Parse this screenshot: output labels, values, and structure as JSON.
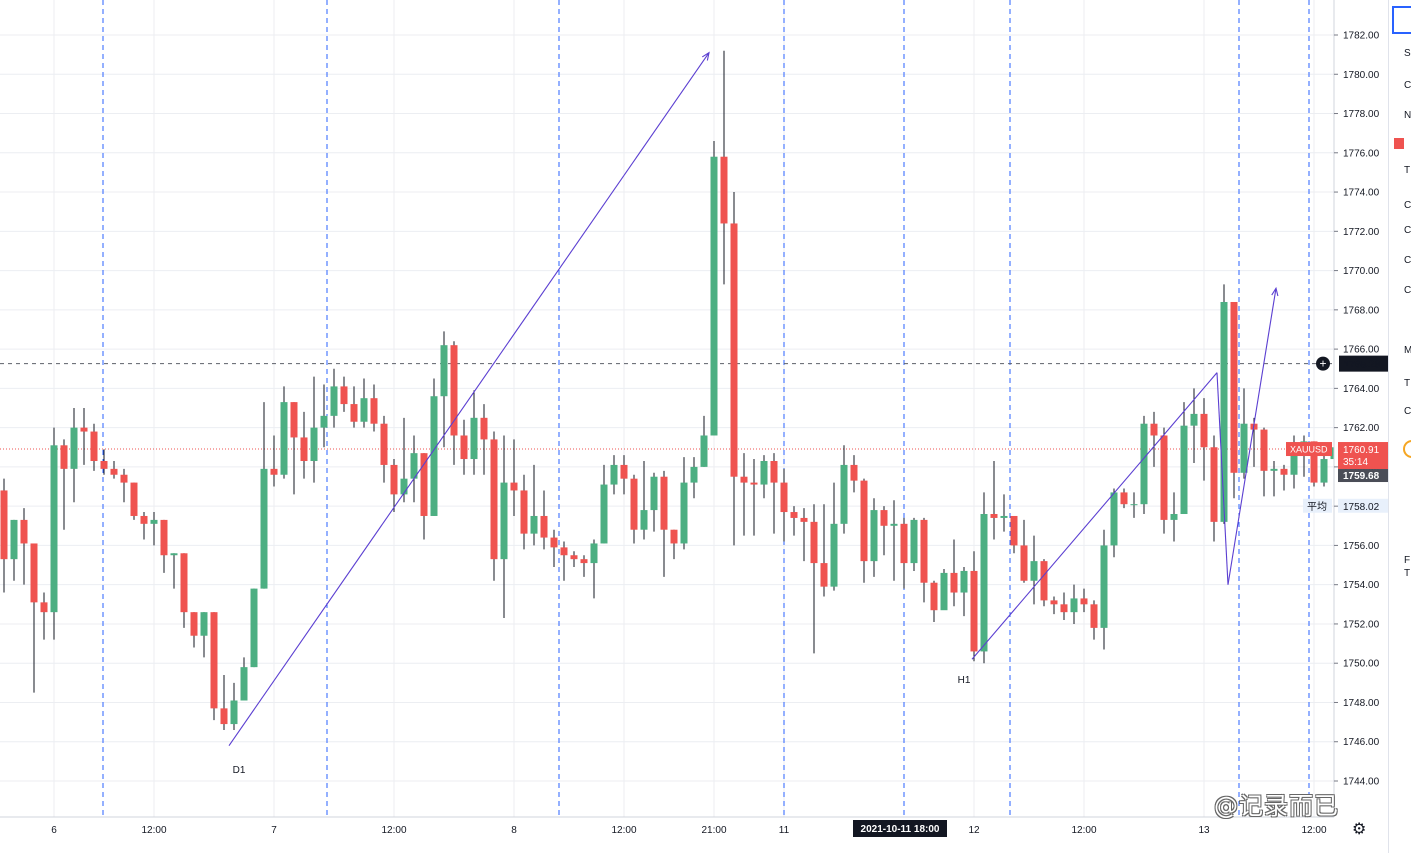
{
  "chart_data": {
    "type": "candlestick",
    "symbol": "XAUUSD",
    "ylim": [
      1743.0,
      1784.0
    ],
    "y_ticks": [
      1744,
      1746,
      1748,
      1750,
      1752,
      1754,
      1756,
      1758,
      1760,
      1762,
      1764,
      1766,
      1768,
      1770,
      1772,
      1774,
      1776,
      1778,
      1780,
      1782
    ],
    "x_labels": [
      {
        "label": "6",
        "index": 5
      },
      {
        "label": "12:00",
        "index": 15
      },
      {
        "label": "7",
        "index": 27
      },
      {
        "label": "12:00",
        "index": 39
      },
      {
        "label": "8",
        "index": 51
      },
      {
        "label": "12:00",
        "index": 62
      },
      {
        "label": "21:00",
        "index": 71
      },
      {
        "label": "11",
        "index": 78
      },
      {
        "label": "12",
        "index": 97
      },
      {
        "label": "12:00",
        "index": 108
      },
      {
        "label": "13",
        "index": 120
      },
      {
        "label": "12:00",
        "index": 131
      }
    ],
    "session_lines": [
      9.9,
      32.3,
      55.5,
      78,
      90,
      100.6,
      123.5,
      130.5
    ],
    "candles": [
      [
        1758.8,
        1755.3,
        1759.4,
        1753.6
      ],
      [
        1755.3,
        1757.3,
        1757.3,
        1754.2
      ],
      [
        1757.3,
        1756.1,
        1757.9,
        1754.0
      ],
      [
        1756.1,
        1753.1,
        1756.1,
        1748.5
      ],
      [
        1753.1,
        1752.6,
        1753.6,
        1751.2
      ],
      [
        1752.6,
        1761.1,
        1762.0,
        1751.2
      ],
      [
        1761.1,
        1759.9,
        1761.4,
        1756.8
      ],
      [
        1759.9,
        1762.0,
        1763.0,
        1758.2
      ],
      [
        1762.0,
        1761.8,
        1763.0,
        1760.1
      ],
      [
        1761.8,
        1760.3,
        1762.2,
        1759.8
      ],
      [
        1760.3,
        1759.9,
        1760.9,
        1759.6
      ],
      [
        1759.9,
        1759.6,
        1760.3,
        1759.4
      ],
      [
        1759.6,
        1759.2,
        1759.9,
        1758.2
      ],
      [
        1759.2,
        1757.5,
        1759.2,
        1757.3
      ],
      [
        1757.5,
        1757.1,
        1757.7,
        1756.3
      ],
      [
        1757.1,
        1757.3,
        1757.7,
        1756.0
      ],
      [
        1757.3,
        1755.5,
        1757.3,
        1754.6
      ],
      [
        1755.5,
        1755.6,
        1755.6,
        1753.8
      ],
      [
        1755.6,
        1752.6,
        1755.6,
        1751.8
      ],
      [
        1752.6,
        1751.4,
        1752.6,
        1750.8
      ],
      [
        1751.4,
        1752.6,
        1752.6,
        1750.3
      ],
      [
        1752.6,
        1747.7,
        1752.6,
        1747.1
      ],
      [
        1747.7,
        1746.9,
        1749.4,
        1746.6
      ],
      [
        1746.9,
        1748.1,
        1749.0,
        1746.6
      ],
      [
        1748.1,
        1749.8,
        1750.3,
        1748.1
      ],
      [
        1749.8,
        1753.8,
        1753.8,
        1749.8
      ],
      [
        1753.8,
        1759.9,
        1763.3,
        1753.8
      ],
      [
        1759.9,
        1759.6,
        1761.6,
        1759.0
      ],
      [
        1759.6,
        1763.3,
        1764.1,
        1759.4
      ],
      [
        1763.3,
        1761.5,
        1763.3,
        1758.6
      ],
      [
        1761.5,
        1760.3,
        1762.8,
        1759.4
      ],
      [
        1760.3,
        1762.0,
        1764.6,
        1759.2
      ],
      [
        1762.0,
        1762.6,
        1764.2,
        1761.0
      ],
      [
        1762.6,
        1764.1,
        1765.0,
        1762.0
      ],
      [
        1764.1,
        1763.2,
        1764.6,
        1762.8
      ],
      [
        1763.2,
        1762.3,
        1764.1,
        1762.0
      ],
      [
        1762.3,
        1763.5,
        1764.5,
        1762.0
      ],
      [
        1763.5,
        1762.2,
        1764.2,
        1761.8
      ],
      [
        1762.2,
        1760.1,
        1762.6,
        1759.2
      ],
      [
        1760.1,
        1758.6,
        1760.4,
        1757.7
      ],
      [
        1758.6,
        1759.4,
        1762.5,
        1758.2
      ],
      [
        1759.4,
        1760.7,
        1761.6,
        1758.2
      ],
      [
        1760.7,
        1757.5,
        1760.7,
        1756.3
      ],
      [
        1757.5,
        1763.6,
        1764.5,
        1757.5
      ],
      [
        1763.6,
        1766.2,
        1766.9,
        1761.0
      ],
      [
        1766.2,
        1761.6,
        1766.4,
        1760.1
      ],
      [
        1761.6,
        1760.4,
        1762.4,
        1759.6
      ],
      [
        1760.4,
        1762.5,
        1763.9,
        1759.6
      ],
      [
        1762.5,
        1761.4,
        1763.2,
        1759.6
      ],
      [
        1761.4,
        1755.3,
        1761.8,
        1754.2
      ],
      [
        1755.3,
        1759.2,
        1761.6,
        1752.3
      ],
      [
        1759.2,
        1758.8,
        1761.4,
        1757.5
      ],
      [
        1758.8,
        1756.6,
        1759.6,
        1755.8
      ],
      [
        1756.6,
        1757.5,
        1760.1,
        1756.0
      ],
      [
        1757.5,
        1756.4,
        1758.8,
        1755.8
      ],
      [
        1756.4,
        1755.9,
        1756.8,
        1754.9
      ],
      [
        1755.9,
        1755.5,
        1756.2,
        1754.2
      ],
      [
        1755.5,
        1755.3,
        1755.7,
        1754.9
      ],
      [
        1755.3,
        1755.1,
        1755.5,
        1754.4
      ],
      [
        1755.1,
        1756.1,
        1756.3,
        1753.3
      ],
      [
        1756.1,
        1759.1,
        1760.1,
        1756.1
      ],
      [
        1759.1,
        1760.1,
        1760.6,
        1758.6
      ],
      [
        1760.1,
        1759.4,
        1760.6,
        1758.6
      ],
      [
        1759.4,
        1756.8,
        1759.6,
        1756.1
      ],
      [
        1756.8,
        1757.8,
        1760.3,
        1756.3
      ],
      [
        1757.8,
        1759.5,
        1759.7,
        1756.7
      ],
      [
        1759.5,
        1756.8,
        1759.8,
        1754.4
      ],
      [
        1756.8,
        1756.1,
        1756.8,
        1755.3
      ],
      [
        1756.1,
        1759.2,
        1760.5,
        1755.8
      ],
      [
        1759.2,
        1760.0,
        1760.5,
        1758.4
      ],
      [
        1760.0,
        1761.6,
        1762.6,
        1760.0
      ],
      [
        1761.6,
        1775.8,
        1776.6,
        1761.6
      ],
      [
        1775.8,
        1772.4,
        1781.2,
        1769.3
      ],
      [
        1772.4,
        1759.5,
        1774.0,
        1756.0
      ],
      [
        1759.5,
        1759.2,
        1760.7,
        1756.5
      ],
      [
        1759.2,
        1759.1,
        1760.4,
        1756.5
      ],
      [
        1759.1,
        1760.3,
        1760.6,
        1758.4
      ],
      [
        1760.3,
        1759.2,
        1760.7,
        1756.6
      ],
      [
        1759.2,
        1757.7,
        1759.9,
        1756.2
      ],
      [
        1757.7,
        1757.4,
        1758.0,
        1756.5
      ],
      [
        1757.4,
        1757.2,
        1757.9,
        1755.2
      ],
      [
        1757.2,
        1755.1,
        1758.1,
        1750.5
      ],
      [
        1755.1,
        1753.9,
        1758.1,
        1753.4
      ],
      [
        1753.9,
        1757.1,
        1759.2,
        1753.7
      ],
      [
        1757.1,
        1760.1,
        1761.1,
        1756.6
      ],
      [
        1760.1,
        1759.3,
        1760.6,
        1758.7
      ],
      [
        1759.3,
        1755.2,
        1759.4,
        1754.1
      ],
      [
        1755.2,
        1757.8,
        1758.4,
        1754.4
      ],
      [
        1757.8,
        1757.0,
        1758.0,
        1755.5
      ],
      [
        1757.0,
        1757.1,
        1758.3,
        1754.2
      ],
      [
        1757.1,
        1755.1,
        1757.4,
        1753.8
      ],
      [
        1755.1,
        1757.3,
        1757.4,
        1754.7
      ],
      [
        1757.3,
        1754.1,
        1757.4,
        1753.1
      ],
      [
        1754.1,
        1752.7,
        1754.2,
        1752.1
      ],
      [
        1752.7,
        1754.6,
        1754.8,
        1752.8
      ],
      [
        1754.6,
        1753.6,
        1756.3,
        1752.9
      ],
      [
        1753.6,
        1754.7,
        1754.9,
        1752.4
      ],
      [
        1754.7,
        1750.6,
        1755.7,
        1750.1
      ],
      [
        1750.6,
        1757.6,
        1758.7,
        1750.0
      ],
      [
        1757.6,
        1757.4,
        1760.3,
        1756.3
      ],
      [
        1757.4,
        1757.5,
        1758.6,
        1756.7
      ],
      [
        1757.5,
        1756.0,
        1757.5,
        1755.6
      ],
      [
        1756.0,
        1754.2,
        1757.3,
        1754.1
      ],
      [
        1754.2,
        1755.2,
        1756.5,
        1753.0
      ],
      [
        1755.2,
        1753.2,
        1755.3,
        1752.9
      ],
      [
        1753.2,
        1753.0,
        1753.4,
        1752.5
      ],
      [
        1753.0,
        1752.6,
        1753.6,
        1752.2
      ],
      [
        1752.6,
        1753.3,
        1754.0,
        1752.0
      ],
      [
        1753.3,
        1753.0,
        1753.8,
        1752.6
      ],
      [
        1753.0,
        1751.8,
        1753.2,
        1751.2
      ],
      [
        1751.8,
        1756.0,
        1756.8,
        1750.7
      ],
      [
        1756.0,
        1758.7,
        1758.9,
        1755.4
      ],
      [
        1758.7,
        1758.1,
        1758.9,
        1757.9
      ],
      [
        1758.1,
        1758.1,
        1758.7,
        1757.4
      ],
      [
        1758.1,
        1762.2,
        1762.6,
        1757.6
      ],
      [
        1762.2,
        1761.6,
        1762.8,
        1760.0
      ],
      [
        1761.6,
        1757.3,
        1762.0,
        1756.6
      ],
      [
        1757.3,
        1757.6,
        1758.7,
        1756.2
      ],
      [
        1757.6,
        1762.1,
        1763.3,
        1757.6
      ],
      [
        1762.1,
        1762.7,
        1764.0,
        1760.2
      ],
      [
        1762.7,
        1761.0,
        1763.5,
        1759.3
      ],
      [
        1761.0,
        1757.2,
        1761.6,
        1756.2
      ],
      [
        1757.2,
        1768.4,
        1769.3,
        1757.1
      ],
      [
        1768.4,
        1759.7,
        1768.4,
        1758.4
      ],
      [
        1759.7,
        1762.2,
        1764.0,
        1759.4
      ],
      [
        1762.2,
        1761.9,
        1762.5,
        1760.0
      ],
      [
        1761.9,
        1759.8,
        1762.0,
        1758.5
      ],
      [
        1759.8,
        1759.9,
        1760.3,
        1758.5
      ],
      [
        1759.9,
        1759.6,
        1760.1,
        1758.8
      ],
      [
        1759.6,
        1761.2,
        1761.6,
        1758.9
      ],
      [
        1761.2,
        1761.3,
        1761.6,
        1759.5
      ],
      [
        1761.3,
        1759.2,
        1761.3,
        1759.0
      ],
      [
        1759.2,
        1760.4,
        1760.6,
        1759.0
      ],
      [
        1760.4,
        1761.0,
        1761.5,
        1759.3
      ],
      [
        1761.0,
        1761.9,
        1762.3,
        1759.8
      ],
      [
        1761.9,
        1760.9,
        1762.1,
        1759.8
      ]
    ],
    "trend_lines": [
      {
        "from": [
          22.5,
          1745.8
        ],
        "to": [
          70.5,
          1781.1
        ]
      },
      {
        "from": [
          96.8,
          1750.2
        ],
        "to": [
          121.3,
          1764.8
        ]
      },
      {
        "from": [
          121.3,
          1764.8
        ],
        "to": [
          122.4,
          1754.0
        ]
      },
      {
        "from": [
          122.4,
          1754.0
        ],
        "to": [
          127.2,
          1769.1
        ]
      }
    ],
    "annotations": [
      {
        "text": "D1",
        "x": 23.5,
        "y": 1744.4
      },
      {
        "text": "H1",
        "x": 96.0,
        "y": 1749.0
      }
    ],
    "crosshair_price": 1765.26,
    "crosshair_label": "1765.26",
    "last_price_line": 1760.91,
    "price_label": {
      "symbol": "XAUUSD",
      "price": "1760.91",
      "countdown": "35:14",
      "prev": "1759.68"
    },
    "avg_label": {
      "text": "平均",
      "price": "1758.02",
      "value": 1758.02
    },
    "time_cursor_label": "2021-10-11 18:00"
  },
  "ui": {
    "side_glyphs": [
      "S",
      "C",
      "N",
      "T",
      "C",
      "C",
      "C",
      "C",
      "M",
      "T",
      "C",
      "F",
      "T"
    ],
    "watermark": "@记录而已",
    "settings_icon": "gear-icon"
  },
  "colors": {
    "up": "#4caf82",
    "down": "#ef5350",
    "trend": "#5b3fd1",
    "grid": "#eceef2",
    "session": "#2962ff",
    "axis": "#d1d4dc"
  }
}
